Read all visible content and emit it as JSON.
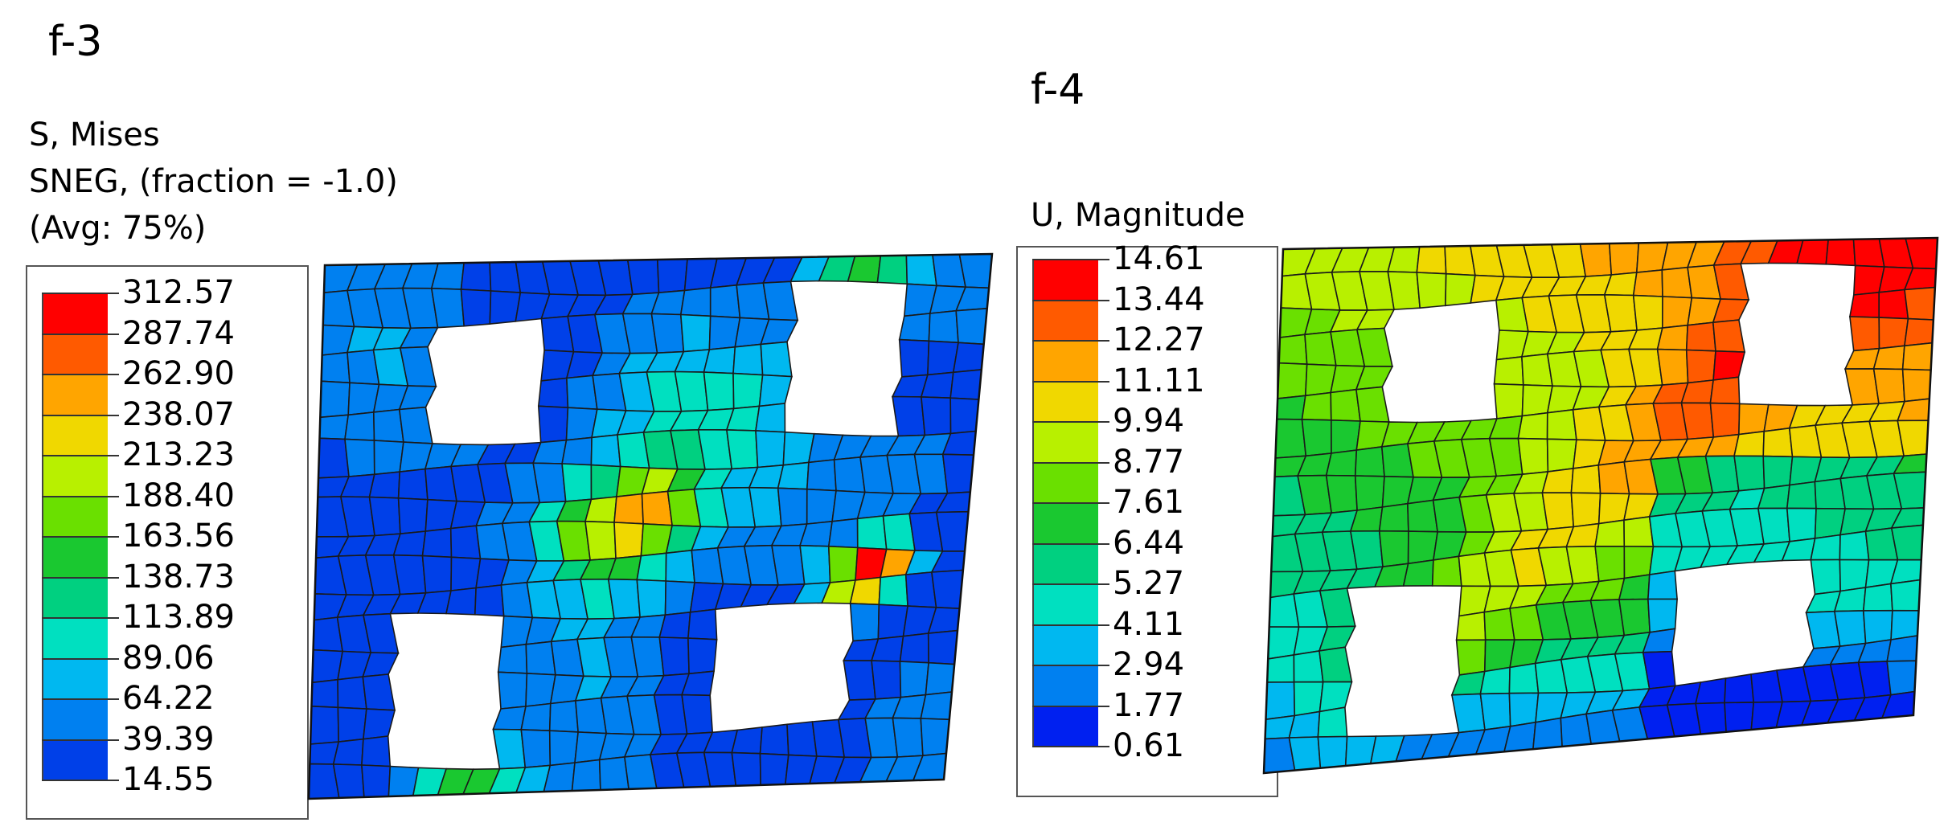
{
  "panels": [
    {
      "id": "f3",
      "label": "f-3",
      "legend_title": [
        "S, Mises",
        "SNEG, (fraction = -1.0)",
        "(Avg: 75%)"
      ],
      "legend_values": [
        "312.57",
        "287.74",
        "262.90",
        "238.07",
        "213.23",
        "188.40",
        "163.56",
        "138.73",
        "113.89",
        "89.06",
        "64.22",
        "39.39",
        "14.55"
      ],
      "colors": [
        "#ff0000",
        "#ff5a00",
        "#ffa500",
        "#f0d800",
        "#b8f000",
        "#6ae000",
        "#1ac830",
        "#00d080",
        "#00e0c0",
        "#00b8f0",
        "#0080f0",
        "#0040e8"
      ]
    },
    {
      "id": "f4",
      "label": "f-4",
      "legend_title": [
        "U, Magnitude"
      ],
      "legend_values": [
        "14.61",
        "13.44",
        "12.27",
        "11.11",
        "9.94",
        "8.77",
        "7.61",
        "6.44",
        "5.27",
        "4.11",
        "2.94",
        "1.77",
        "0.61"
      ],
      "colors": [
        "#ff0000",
        "#ff5a00",
        "#ffa500",
        "#f0d800",
        "#b8f000",
        "#6ae000",
        "#1ac830",
        "#00d080",
        "#00e0c0",
        "#00b8f0",
        "#0080f0",
        "#0020f0"
      ]
    }
  ]
}
